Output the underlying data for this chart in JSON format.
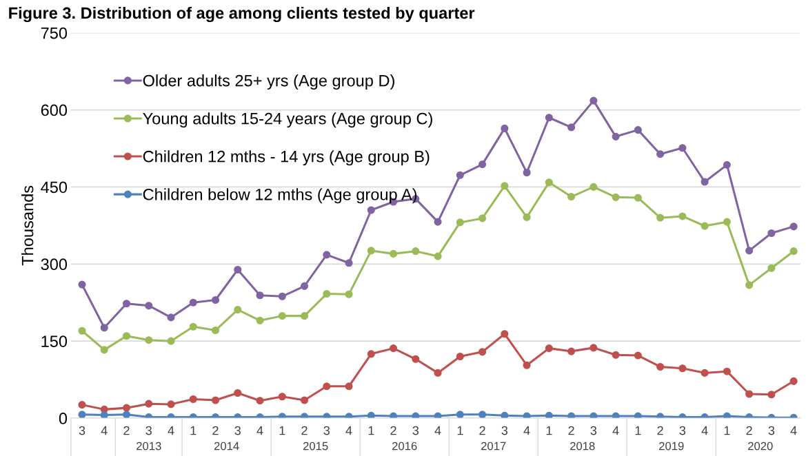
{
  "chart_data": {
    "type": "line",
    "title": "Figure 3. Distribution of age among clients tested by quarter",
    "ylabel": "Thousands",
    "categories": [
      "3",
      "4",
      "2",
      "3",
      "4",
      "1",
      "2",
      "3",
      "4",
      "1",
      "2",
      "3",
      "4",
      "1",
      "2",
      "3",
      "4",
      "1",
      "2",
      "3",
      "4",
      "1",
      "2",
      "3",
      "4",
      "1",
      "2",
      "3",
      "4",
      "1",
      "2",
      "3",
      "4"
    ],
    "annotations": [
      "2013",
      "2014",
      "2015",
      "2016",
      "2017",
      "2018",
      "2019",
      "2020"
    ],
    "series": [
      {
        "name": "Older adults 25+ yrs (Age group D)",
        "color": "#8064a2",
        "values": [
          260,
          176,
          223,
          219,
          196,
          225,
          230,
          289,
          239,
          237,
          257,
          318,
          302,
          405,
          421,
          427,
          382,
          473,
          494,
          564,
          478,
          585,
          566,
          618,
          548,
          561,
          514,
          526,
          460,
          493,
          326,
          360,
          373
        ]
      },
      {
        "name": "Young adults 15-24 years (Age group C)",
        "color": "#9bbb59",
        "values": [
          170,
          133,
          160,
          152,
          150,
          178,
          171,
          211,
          190,
          199,
          199,
          242,
          241,
          326,
          320,
          325,
          315,
          381,
          389,
          452,
          391,
          459,
          431,
          450,
          430,
          429,
          390,
          393,
          374,
          382,
          259,
          292,
          325
        ]
      },
      {
        "name": "Children 12 mths - 14 yrs (Age group B)",
        "color": "#c0504d",
        "values": [
          26,
          17,
          20,
          28,
          27,
          37,
          35,
          49,
          34,
          42,
          35,
          62,
          62,
          125,
          136,
          115,
          88,
          120,
          129,
          164,
          103,
          136,
          130,
          137,
          123,
          122,
          100,
          97,
          88,
          91,
          47,
          46,
          72
        ]
      },
      {
        "name": "Children below 12 mths (Age group A)",
        "color": "#4f81bd",
        "values": [
          7,
          6,
          7,
          2,
          2,
          2,
          2,
          2,
          2,
          3,
          3,
          3,
          3,
          5,
          4,
          4,
          4,
          7,
          7,
          5,
          4,
          5,
          4,
          4,
          4,
          4,
          3,
          2,
          2,
          4,
          2,
          1,
          1
        ]
      }
    ],
    "ylim": [
      0,
      750
    ],
    "yticks": [
      0,
      150,
      300,
      450,
      600,
      750
    ],
    "grid": "y",
    "legend": "top left",
    "marker": "circle"
  }
}
